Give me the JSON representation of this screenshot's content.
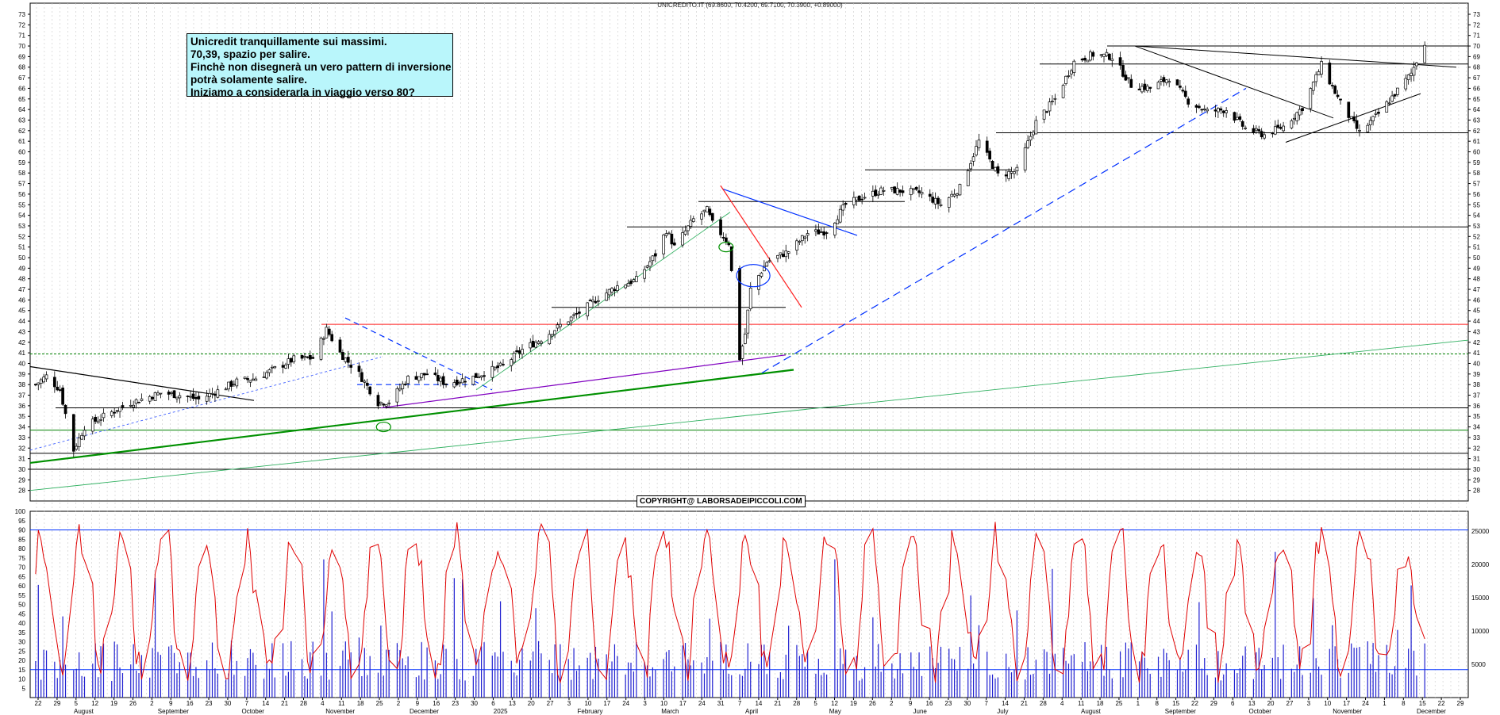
{
  "chart_data": [
    {
      "type": "candlestick",
      "title": "UNICREDITO.IT (69.8600, 70.4200, 69.7100, 70.3900, +0.89000)",
      "ylim": [
        27,
        73
      ],
      "y_ticks": [
        28,
        29,
        30,
        31,
        32,
        33,
        34,
        35,
        36,
        37,
        38,
        39,
        40,
        41,
        42,
        43,
        44,
        45,
        46,
        47,
        48,
        49,
        50,
        51,
        52,
        53,
        54,
        55,
        56,
        57,
        58,
        59,
        60,
        61,
        62,
        63,
        64,
        65,
        66,
        67,
        68,
        69,
        70,
        71,
        72,
        73
      ],
      "date_range": [
        "2024-07-20",
        "2025-12-31"
      ],
      "annotation_lines": [
        "Unicredit tranquillamente sui massimi.",
        "70,39, spazio per salire.",
        "Finchè non disegnerà un vero pattern di inversione",
        "potrà solamente salire.",
        "Iniziamo a considerarla in viaggio verso 80?"
      ],
      "copyright": "COPYRIGHT@ LABORSADEIPICCOLI.COM",
      "close_path": [
        [
          "2024-07-22",
          38.0
        ],
        [
          "2024-07-26",
          38.8
        ],
        [
          "2024-07-31",
          37.5
        ],
        [
          "2024-08-05",
          31.8
        ],
        [
          "2024-08-09",
          34.0
        ],
        [
          "2024-08-16",
          35.0
        ],
        [
          "2024-08-26",
          36.3
        ],
        [
          "2024-09-06",
          37.2
        ],
        [
          "2024-09-13",
          37.0
        ],
        [
          "2024-09-20",
          36.6
        ],
        [
          "2024-09-27",
          37.4
        ],
        [
          "2024-10-04",
          38.3
        ],
        [
          "2024-10-11",
          38.6
        ],
        [
          "2024-10-18",
          39.5
        ],
        [
          "2024-10-25",
          40.4
        ],
        [
          "2024-11-01",
          40.5
        ],
        [
          "2024-11-06",
          43.2
        ],
        [
          "2024-11-11",
          41.0
        ],
        [
          "2024-11-18",
          39.0
        ],
        [
          "2024-11-25",
          36.3
        ],
        [
          "2024-11-29",
          36.4
        ],
        [
          "2024-12-06",
          38.6
        ],
        [
          "2024-12-13",
          39.0
        ],
        [
          "2024-12-20",
          38.1
        ],
        [
          "2024-12-30",
          38.7
        ],
        [
          "2025-01-10",
          39.8
        ],
        [
          "2025-01-17",
          41.3
        ],
        [
          "2025-01-24",
          42.3
        ],
        [
          "2025-01-31",
          43.6
        ],
        [
          "2025-02-07",
          44.8
        ],
        [
          "2025-02-14",
          46.2
        ],
        [
          "2025-02-21",
          47.3
        ],
        [
          "2025-02-28",
          47.9
        ],
        [
          "2025-03-07",
          50.3
        ],
        [
          "2025-03-11",
          52.6
        ],
        [
          "2025-03-14",
          51.0
        ],
        [
          "2025-03-21",
          53.6
        ],
        [
          "2025-03-26",
          54.5
        ],
        [
          "2025-03-28",
          53.2
        ],
        [
          "2025-04-03",
          51.4
        ],
        [
          "2025-04-07",
          40.5
        ],
        [
          "2025-04-09",
          42.8
        ],
        [
          "2025-04-11",
          47.0
        ],
        [
          "2025-04-17",
          49.6
        ],
        [
          "2025-04-25",
          50.6
        ],
        [
          "2025-05-02",
          52.3
        ],
        [
          "2025-05-09",
          52.5
        ],
        [
          "2025-05-16",
          55.0
        ],
        [
          "2025-05-23",
          55.8
        ],
        [
          "2025-05-30",
          56.4
        ],
        [
          "2025-06-06",
          56.3
        ],
        [
          "2025-06-13",
          56.1
        ],
        [
          "2025-06-20",
          55.0
        ],
        [
          "2025-06-27",
          56.6
        ],
        [
          "2025-07-04",
          61.0
        ],
        [
          "2025-07-11",
          57.8
        ],
        [
          "2025-07-18",
          58.2
        ],
        [
          "2025-07-25",
          62.8
        ],
        [
          "2025-08-01",
          65.0
        ],
        [
          "2025-08-08",
          68.5
        ],
        [
          "2025-08-15",
          69.2
        ],
        [
          "2025-08-22",
          69.0
        ],
        [
          "2025-08-29",
          66.3
        ],
        [
          "2025-09-05",
          66.0
        ],
        [
          "2025-09-12",
          67.0
        ],
        [
          "2025-09-19",
          64.8
        ],
        [
          "2025-09-26",
          63.8
        ],
        [
          "2025-10-03",
          64.0
        ],
        [
          "2025-10-10",
          62.2
        ],
        [
          "2025-10-17",
          61.6
        ],
        [
          "2025-10-24",
          62.4
        ],
        [
          "2025-10-31",
          64.2
        ],
        [
          "2025-11-07",
          68.2
        ],
        [
          "2025-11-14",
          64.6
        ],
        [
          "2025-11-21",
          61.8
        ],
        [
          "2025-11-28",
          63.6
        ],
        [
          "2025-12-05",
          65.8
        ],
        [
          "2025-12-10",
          67.4
        ],
        [
          "2025-12-15",
          70.39
        ]
      ],
      "oscillator": {
        "ylim": [
          0,
          100
        ],
        "y_ticks": [
          5,
          10,
          15,
          20,
          25,
          30,
          35,
          40,
          45,
          50,
          55,
          60,
          65,
          70,
          75,
          80,
          85,
          90,
          95,
          100
        ],
        "overbought": 90,
        "oversold": 15,
        "line_color": "#e00000"
      },
      "volume": {
        "y_ticks": [
          5000,
          10000,
          15000,
          20000,
          25000
        ],
        "bar_color": "#2020d0"
      },
      "x_ticks": [
        "22",
        "29",
        "5",
        "12",
        "19",
        "26",
        "2",
        "9",
        "16",
        "23",
        "30",
        "7",
        "14",
        "21",
        "28",
        "4",
        "11",
        "18",
        "25",
        "2",
        "9",
        "16",
        "23",
        "30",
        "6",
        "13",
        "20",
        "27",
        "3",
        "10",
        "17",
        "24",
        "3",
        "10",
        "17",
        "24",
        "31",
        "7",
        "14",
        "21",
        "28",
        "5",
        "12",
        "19",
        "26",
        "2",
        "9",
        "16",
        "23",
        "30",
        "7",
        "14",
        "21",
        "28",
        "4",
        "11",
        "18",
        "25",
        "1",
        "8",
        "15",
        "22",
        "29",
        "6",
        "13",
        "20",
        "27",
        "3",
        "10",
        "17",
        "24",
        "1",
        "8",
        "15",
        "22",
        "29"
      ],
      "months": [
        "August",
        "September",
        "October",
        "November",
        "December",
        "2025",
        "February",
        "March",
        "April",
        "May",
        "June",
        "July",
        "August",
        "September",
        "October",
        "November",
        "December"
      ]
    }
  ],
  "colors": {
    "up_candle": "#ffffff",
    "down_candle": "#000000",
    "red_support": "#ff2020",
    "green_trend": "#009000",
    "purple_trend": "#8000c0",
    "blue_trend": "#0030ff",
    "note_bg": "#b9f6fb"
  }
}
